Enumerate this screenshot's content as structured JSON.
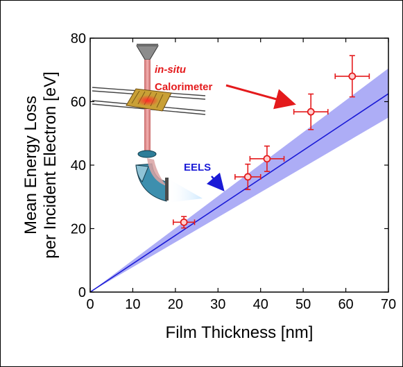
{
  "chart_data": {
    "type": "scatter",
    "xlabel": "Film Thickness [nm]",
    "ylabel_line1": "Mean Energy Loss",
    "ylabel_line2": "per Incident Electron [eV]",
    "xlim": [
      0,
      70
    ],
    "ylim": [
      0,
      80
    ],
    "xticks": [
      0,
      10,
      20,
      30,
      40,
      50,
      60,
      70
    ],
    "yticks": [
      0,
      20,
      40,
      60,
      80
    ],
    "grid": false,
    "series": [
      {
        "kind": "points_with_errorbars",
        "color": "#e41a1c",
        "points": [
          {
            "x": 22.0,
            "y": 22.0,
            "xerr": 2.5,
            "yerr": 1.8
          },
          {
            "x": 37.0,
            "y": 36.3,
            "xerr": 3.0,
            "yerr": 4.0
          },
          {
            "x": 41.5,
            "y": 42.0,
            "xerr": 4.0,
            "yerr": 4.0
          },
          {
            "x": 51.8,
            "y": 56.8,
            "xerr": 4.0,
            "yerr": 5.6
          },
          {
            "x": 61.5,
            "y": 68.0,
            "xerr": 4.0,
            "yerr": 6.5
          }
        ]
      },
      {
        "kind": "line_with_band",
        "color": "#1a1ad6",
        "band_color": "#9f9ff4",
        "x": [
          0,
          70
        ],
        "y": [
          0,
          62.5
        ],
        "band_upper": [
          0,
          70.5
        ],
        "band_lower": [
          0,
          55.0
        ]
      }
    ]
  },
  "annotations": {
    "insitu_label": "in-situ",
    "calorimeter_label": "Calorimeter",
    "eels_label": "EELS",
    "red_color": "#e41a1c",
    "blue_color": "#1a1ad6"
  }
}
